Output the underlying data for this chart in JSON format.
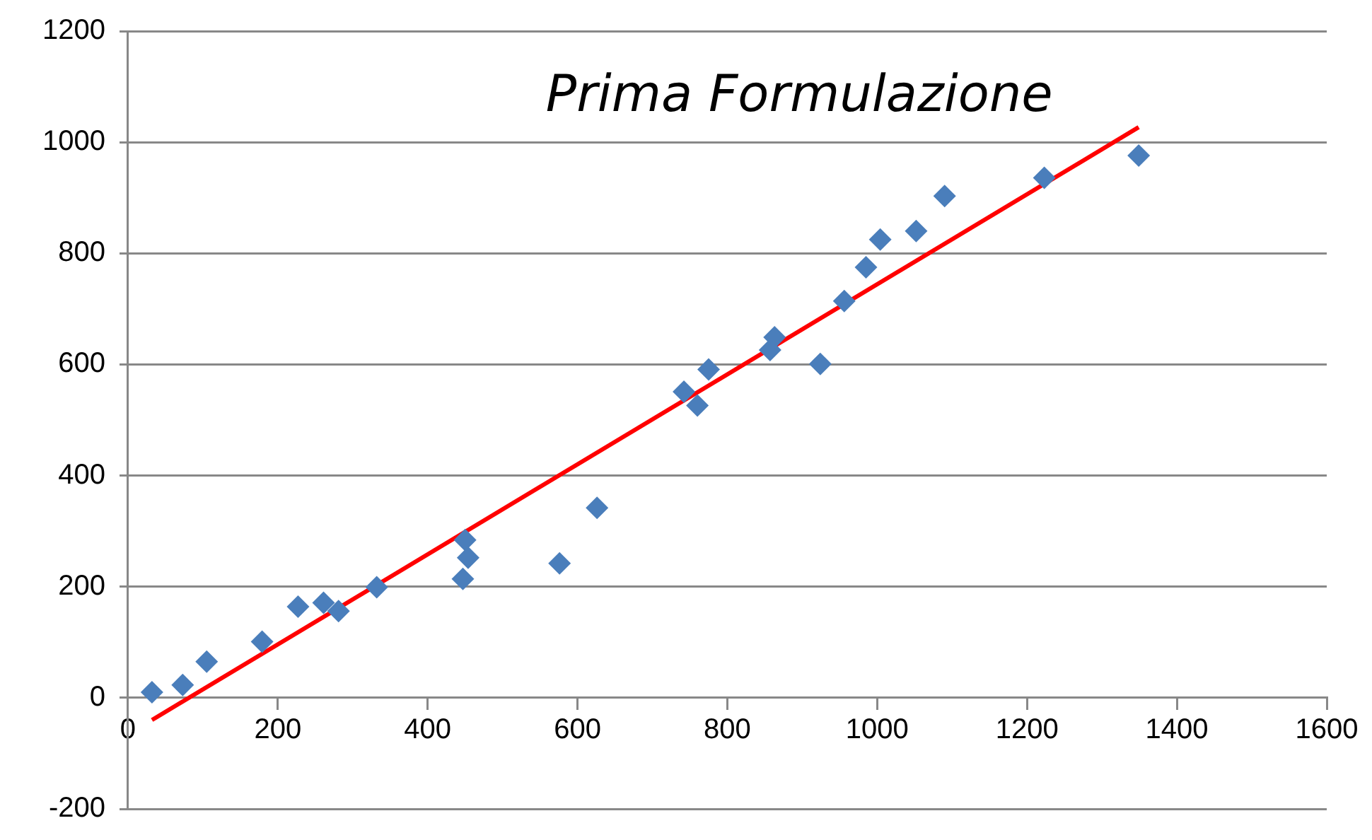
{
  "chart_data": {
    "type": "scatter",
    "title": "Prima Formulazione",
    "xlim": [
      0,
      1600
    ],
    "xticks": [
      0,
      200,
      400,
      600,
      800,
      1000,
      1200,
      1400,
      1600
    ],
    "ylim": [
      -200,
      1200
    ],
    "yticks": [
      -200,
      0,
      200,
      400,
      600,
      800,
      1000,
      1200
    ],
    "grid": "y",
    "legend": false,
    "marker": "diamond",
    "series": [
      {
        "type": "scatter",
        "color": "#4a7ebb",
        "x": [
          32,
          73,
          105,
          179,
          227,
          261,
          281,
          332,
          447,
          450,
          454,
          576,
          626,
          742,
          760,
          775,
          857,
          863,
          924,
          956,
          985,
          1004,
          1052,
          1090,
          1223,
          1349
        ],
        "values": [
          10,
          23,
          65,
          101,
          164,
          171,
          156,
          199,
          214,
          284,
          252,
          242,
          342,
          551,
          526,
          591,
          626,
          649,
          601,
          714,
          775,
          825,
          840,
          903,
          936,
          976
        ]
      },
      {
        "type": "line",
        "color": "#ff0000",
        "marker": "none",
        "x": [
          32,
          1349
        ],
        "values": [
          -40,
          1027
        ]
      }
    ]
  }
}
